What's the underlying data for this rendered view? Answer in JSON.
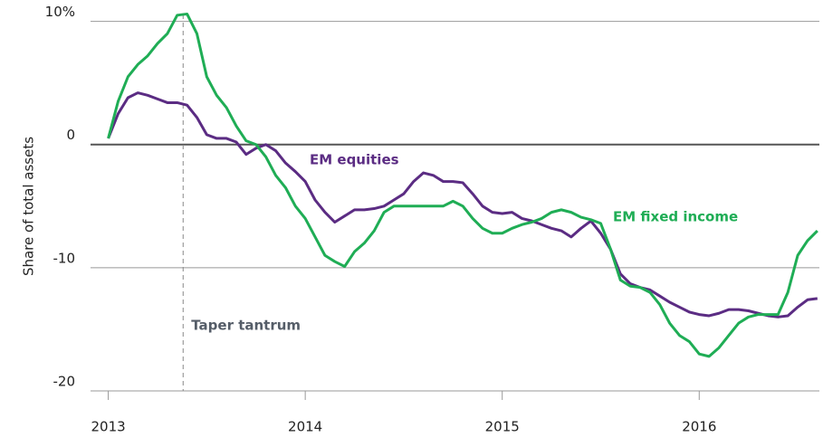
{
  "chart_data": {
    "type": "line",
    "y_label": "Share of total assets",
    "x": [
      2013.0,
      2013.05,
      2013.1,
      2013.15,
      2013.2,
      2013.25,
      2013.3,
      2013.35,
      2013.4,
      2013.45,
      2013.5,
      2013.55,
      2013.6,
      2013.65,
      2013.7,
      2013.75,
      2013.8,
      2013.85,
      2013.9,
      2013.95,
      2014.0,
      2014.05,
      2014.1,
      2014.15,
      2014.2,
      2014.25,
      2014.3,
      2014.35,
      2014.4,
      2014.45,
      2014.5,
      2014.55,
      2014.6,
      2014.65,
      2014.7,
      2014.75,
      2014.8,
      2014.85,
      2014.9,
      2014.95,
      2015.0,
      2015.05,
      2015.1,
      2015.15,
      2015.2,
      2015.25,
      2015.3,
      2015.35,
      2015.4,
      2015.45,
      2015.5,
      2015.55,
      2015.6,
      2015.65,
      2015.7,
      2015.75,
      2015.8,
      2015.85,
      2015.9,
      2015.95,
      2016.0,
      2016.05,
      2016.1,
      2016.15,
      2016.2,
      2016.25,
      2016.3,
      2016.35,
      2016.4,
      2016.45,
      2016.5,
      2016.55,
      2016.6
    ],
    "series": [
      {
        "name": "EM equities",
        "color": "#5b2c83",
        "values": [
          0.5,
          2.5,
          3.8,
          4.2,
          4,
          3.7,
          3.4,
          3.4,
          3.2,
          2.2,
          0.8,
          0.5,
          0.5,
          0.2,
          -0.8,
          -0.3,
          0,
          -0.5,
          -1.5,
          -2.2,
          -3,
          -4.5,
          -5.5,
          -6.3,
          -5.8,
          -5.3,
          -5.3,
          -5.2,
          -5,
          -4.5,
          -4,
          -3,
          -2.3,
          -2.5,
          -3,
          -3,
          -3.1,
          -4,
          -5,
          -5.5,
          -5.6,
          -5.5,
          -6,
          -6.2,
          -6.5,
          -6.8,
          -7,
          -7.5,
          -6.8,
          -6.2,
          -7.2,
          -8.5,
          -10.5,
          -11.3,
          -11.6,
          -11.8,
          -12.3,
          -12.8,
          -13.2,
          -13.6,
          -13.8,
          -13.9,
          -13.7,
          -13.4,
          -13.4,
          -13.5,
          -13.7,
          -13.9,
          -14,
          -13.9,
          -13.2,
          -12.6,
          -12.5
        ]
      },
      {
        "name": "EM fixed income",
        "color": "#1fad55",
        "values": [
          0.5,
          3.5,
          5.5,
          6.5,
          7.2,
          8.2,
          9,
          10.5,
          10.6,
          9,
          5.5,
          4,
          3,
          1.5,
          0.3,
          0,
          -1,
          -2.5,
          -3.5,
          -5,
          -6,
          -7.5,
          -9,
          -9.5,
          -9.9,
          -8.7,
          -8,
          -7,
          -5.5,
          -5,
          -5,
          -5,
          -5,
          -5,
          -5,
          -4.6,
          -5,
          -6,
          -6.8,
          -7.2,
          -7.2,
          -6.8,
          -6.5,
          -6.3,
          -6,
          -5.5,
          -5.3,
          -5.5,
          -5.9,
          -6.1,
          -6.4,
          -8.5,
          -11,
          -11.5,
          -11.6,
          -12,
          -13,
          -14.5,
          -15.5,
          -16,
          -17,
          -17.2,
          -16.5,
          -15.5,
          -14.5,
          -14,
          -13.8,
          -13.8,
          -13.8,
          -12,
          -9,
          -7.8,
          -7
        ]
      }
    ],
    "annotation": {
      "label": "Taper tantrum",
      "x": 2013.38
    },
    "xlim": [
      2012.91,
      2016.61
    ],
    "xticks": [
      2013,
      2014,
      2015,
      2016
    ],
    "ylim": [
      -20,
      11
    ],
    "yticks": [
      {
        "value": 10,
        "label": "10%"
      },
      0,
      -10,
      -20
    ],
    "grid": true
  }
}
